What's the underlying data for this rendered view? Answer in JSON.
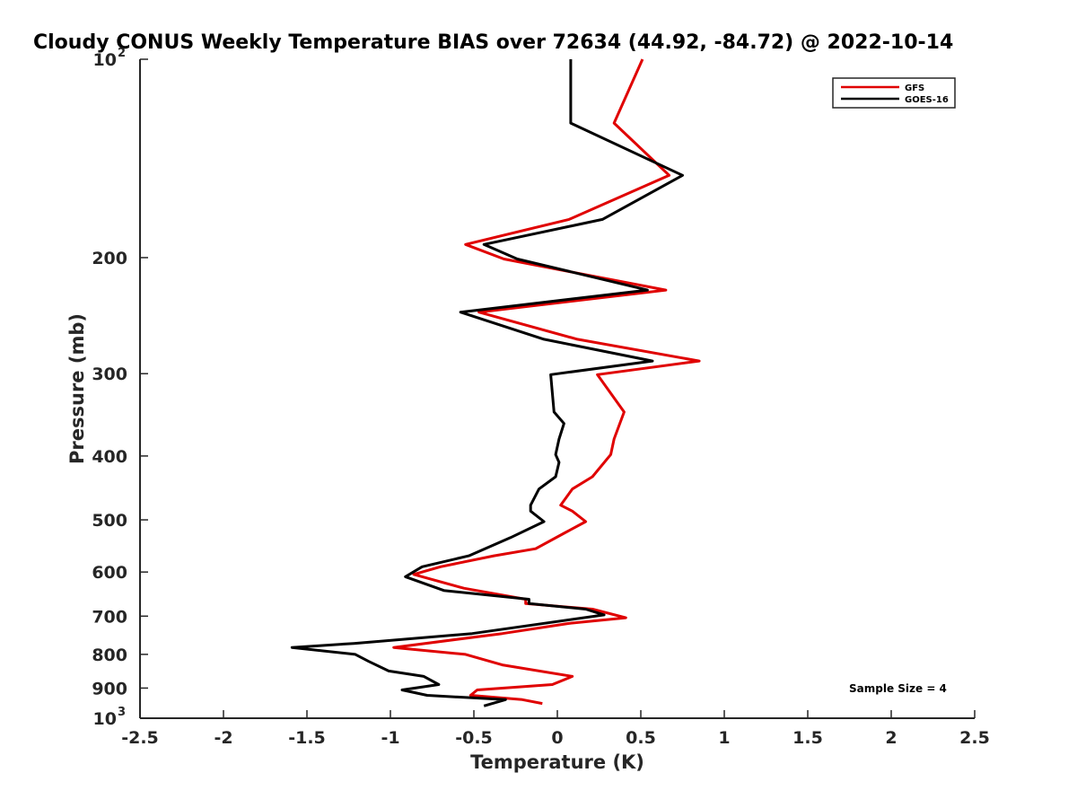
{
  "chart_data": {
    "type": "line",
    "title": "Cloudy CONUS Weekly Temperature BIAS over 72634 (44.92, -84.72) @ 2022-10-14",
    "xlabel": "Temperature (K)",
    "ylabel": "Pressure (mb)",
    "x_ticks": [
      "-2.5",
      "-2",
      "-1.5",
      "-1",
      "-0.5",
      "0",
      "0.5",
      "1",
      "1.5",
      "2",
      "2.5"
    ],
    "y_ticks": [
      {
        "value": 200,
        "label": "200"
      },
      {
        "value": 300,
        "label": "300"
      },
      {
        "value": 400,
        "label": "400"
      },
      {
        "value": 500,
        "label": "500"
      },
      {
        "value": 600,
        "label": "600"
      },
      {
        "value": 700,
        "label": "700"
      },
      {
        "value": 800,
        "label": "800"
      },
      {
        "value": 900,
        "label": "900"
      }
    ],
    "y_tick_min": {
      "value": 100,
      "base": "10",
      "exp": "2"
    },
    "y_tick_max": {
      "value": 1000,
      "base": "10",
      "exp": "3"
    },
    "xlim": [
      -2.5,
      2.5
    ],
    "ylim": [
      100,
      1000
    ],
    "y_scale": "log",
    "y_reversed": true,
    "grid": false,
    "legend_position": "top-right",
    "annotation": "Sample Size = 4",
    "series": [
      {
        "name": "GFS",
        "color": "#e00000",
        "points": [
          [
            0.51,
            100
          ],
          [
            0.34,
            125
          ],
          [
            0.67,
            150
          ],
          [
            0.07,
            175
          ],
          [
            -0.55,
            191
          ],
          [
            -0.32,
            201
          ],
          [
            0.65,
            224
          ],
          [
            -0.47,
            242
          ],
          [
            0.12,
            266
          ],
          [
            0.85,
            287
          ],
          [
            0.24,
            301
          ],
          [
            0.4,
            343
          ],
          [
            0.34,
            377
          ],
          [
            0.32,
            398
          ],
          [
            0.21,
            430
          ],
          [
            0.09,
            449
          ],
          [
            0.02,
            475
          ],
          [
            0.09,
            485
          ],
          [
            0.17,
            503
          ],
          [
            0.04,
            524
          ],
          [
            -0.13,
            553
          ],
          [
            -0.38,
            567
          ],
          [
            -0.7,
            589
          ],
          [
            -0.86,
            605
          ],
          [
            -0.56,
            635
          ],
          [
            -0.19,
            660
          ],
          [
            -0.19,
            670
          ],
          [
            0.21,
            683
          ],
          [
            0.41,
            704
          ],
          [
            0.07,
            718
          ],
          [
            -0.33,
            744
          ],
          [
            -0.98,
            781
          ],
          [
            -0.55,
            800
          ],
          [
            -0.33,
            830
          ],
          [
            0.09,
            864
          ],
          [
            -0.03,
            889
          ],
          [
            -0.48,
            906
          ],
          [
            -0.52,
            923
          ],
          [
            -0.21,
            937
          ],
          [
            -0.09,
            950
          ]
        ]
      },
      {
        "name": "GOES-16",
        "color": "#000000",
        "points": [
          [
            0.08,
            100
          ],
          [
            0.08,
            125
          ],
          [
            0.75,
            150
          ],
          [
            0.27,
            175
          ],
          [
            -0.44,
            191
          ],
          [
            -0.24,
            201
          ],
          [
            0.54,
            224
          ],
          [
            -0.58,
            242
          ],
          [
            -0.08,
            266
          ],
          [
            0.57,
            287
          ],
          [
            -0.04,
            301
          ],
          [
            -0.02,
            343
          ],
          [
            0.04,
            357
          ],
          [
            0.01,
            377
          ],
          [
            -0.01,
            398
          ],
          [
            0.01,
            409
          ],
          [
            -0.01,
            430
          ],
          [
            -0.11,
            449
          ],
          [
            -0.16,
            475
          ],
          [
            -0.16,
            485
          ],
          [
            -0.08,
            503
          ],
          [
            -0.28,
            532
          ],
          [
            -0.53,
            567
          ],
          [
            -0.81,
            589
          ],
          [
            -0.91,
            610
          ],
          [
            -0.68,
            640
          ],
          [
            -0.17,
            660
          ],
          [
            -0.17,
            670
          ],
          [
            0.17,
            683
          ],
          [
            0.28,
            697
          ],
          [
            -0.51,
            744
          ],
          [
            -1.22,
            770
          ],
          [
            -1.59,
            781
          ],
          [
            -1.21,
            800
          ],
          [
            -1.13,
            820
          ],
          [
            -1.01,
            848
          ],
          [
            -0.8,
            864
          ],
          [
            -0.71,
            889
          ],
          [
            -0.93,
            906
          ],
          [
            -0.78,
            923
          ],
          [
            -0.31,
            937
          ],
          [
            -0.44,
            958
          ]
        ]
      }
    ]
  }
}
